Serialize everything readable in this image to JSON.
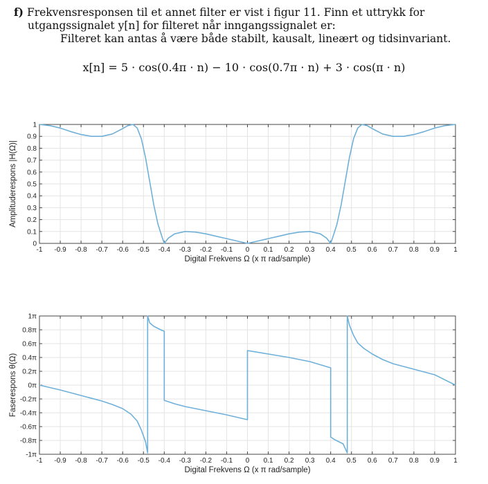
{
  "question": {
    "label": "f)",
    "line1": "Frekvensresponsen til et annet filter er vist i figur 11. Finn et uttrykk for",
    "line2": "utgangssignalet y[n] for filteret når inngangssignalet er:",
    "line3": "Filteret kan antas å være både stabilt, kausalt, lineært og tidsinvariant.",
    "equation": "x[n] = 5 · cos(0.4π · n) − 10 · cos(0.7π · n) + 3 · cos(π · n)"
  },
  "chart_data": [
    {
      "type": "line",
      "xlabel": "Digital Frekvens Ω (x π rad/sample)",
      "ylabel": "Amplituderespons |H(Ω)|",
      "xlim": [
        -1,
        1
      ],
      "ylim": [
        0,
        1
      ],
      "grid": true,
      "xticks": [
        "-1",
        "-0.9",
        "-0.8",
        "-0.7",
        "-0.6",
        "-0.5",
        "-0.4",
        "-0.3",
        "-0.2",
        "-0.1",
        "0",
        "0.1",
        "0.2",
        "0.3",
        "0.4",
        "0.5",
        "0.6",
        "0.7",
        "0.8",
        "0.9",
        "1"
      ],
      "yticks": [
        "0",
        "0.1",
        "0.2",
        "0.3",
        "0.4",
        "0.5",
        "0.6",
        "0.7",
        "0.8",
        "0.9",
        "1"
      ],
      "color": "#6fb0d8",
      "x": [
        -1,
        -0.95,
        -0.9,
        -0.85,
        -0.8,
        -0.75,
        -0.7,
        -0.65,
        -0.6,
        -0.575,
        -0.55,
        -0.53,
        -0.51,
        -0.49,
        -0.47,
        -0.45,
        -0.43,
        -0.41,
        -0.4,
        -0.38,
        -0.35,
        -0.3,
        -0.25,
        -0.2,
        -0.15,
        -0.1,
        -0.05,
        0,
        0.05,
        0.1,
        0.15,
        0.2,
        0.25,
        0.3,
        0.35,
        0.38,
        0.4,
        0.41,
        0.43,
        0.45,
        0.47,
        0.49,
        0.51,
        0.53,
        0.55,
        0.575,
        0.6,
        0.65,
        0.7,
        0.75,
        0.8,
        0.85,
        0.9,
        0.95,
        1
      ],
      "y": [
        1,
        0.99,
        0.97,
        0.94,
        0.915,
        0.9,
        0.9,
        0.92,
        0.965,
        0.99,
        1,
        0.97,
        0.88,
        0.72,
        0.52,
        0.32,
        0.16,
        0.05,
        0,
        0.045,
        0.08,
        0.1,
        0.095,
        0.08,
        0.06,
        0.04,
        0.02,
        0,
        0.02,
        0.04,
        0.06,
        0.08,
        0.095,
        0.1,
        0.08,
        0.045,
        0,
        0.05,
        0.16,
        0.32,
        0.52,
        0.72,
        0.88,
        0.97,
        1,
        0.99,
        0.965,
        0.92,
        0.9,
        0.9,
        0.915,
        0.94,
        0.97,
        0.99,
        1
      ]
    },
    {
      "type": "line",
      "xlabel": "Digital Frekvens Ω (x π rad/sample)",
      "ylabel": "Faserespons θ(Ω)",
      "xlim": [
        -1,
        1
      ],
      "ylim": [
        -1,
        1
      ],
      "grid": true,
      "xticks": [
        "-1",
        "-0.9",
        "-0.8",
        "-0.7",
        "-0.6",
        "-0.5",
        "-0.4",
        "-0.3",
        "-0.2",
        "-0.1",
        "0",
        "0.1",
        "0.2",
        "0.3",
        "0.4",
        "0.5",
        "0.6",
        "0.7",
        "0.8",
        "0.9",
        "1"
      ],
      "yticks": [
        "-1π",
        "-0.8π",
        "-0.6π",
        "-0.4π",
        "-0.2π",
        "0π",
        "0.2π",
        "0.4π",
        "0.6π",
        "0.8π",
        "1π"
      ],
      "color": "#6fb0d8",
      "x": [
        -1,
        -0.9,
        -0.8,
        -0.7,
        -0.65,
        -0.6,
        -0.56,
        -0.53,
        -0.51,
        -0.49,
        -0.48,
        -0.48,
        -0.47,
        -0.45,
        -0.43,
        -0.41,
        -0.4,
        -0.4,
        -0.35,
        -0.3,
        -0.2,
        -0.1,
        0,
        0,
        0.1,
        0.2,
        0.3,
        0.4,
        0.4,
        0.42,
        0.44,
        0.46,
        0.48,
        0.48,
        0.49,
        0.51,
        0.53,
        0.56,
        0.6,
        0.65,
        0.7,
        0.8,
        0.9,
        1
      ],
      "y": [
        0,
        -0.07,
        -0.15,
        -0.23,
        -0.28,
        -0.34,
        -0.42,
        -0.52,
        -0.65,
        -0.82,
        -0.98,
        1,
        0.9,
        0.85,
        0.82,
        0.79,
        0.78,
        -0.22,
        -0.27,
        -0.31,
        -0.37,
        -0.43,
        -0.5,
        0.5,
        0.45,
        0.4,
        0.34,
        0.25,
        -0.75,
        -0.79,
        -0.82,
        -0.85,
        -0.98,
        1,
        0.87,
        0.72,
        0.61,
        0.53,
        0.45,
        0.37,
        0.31,
        0.23,
        0.15,
        0
      ]
    }
  ]
}
